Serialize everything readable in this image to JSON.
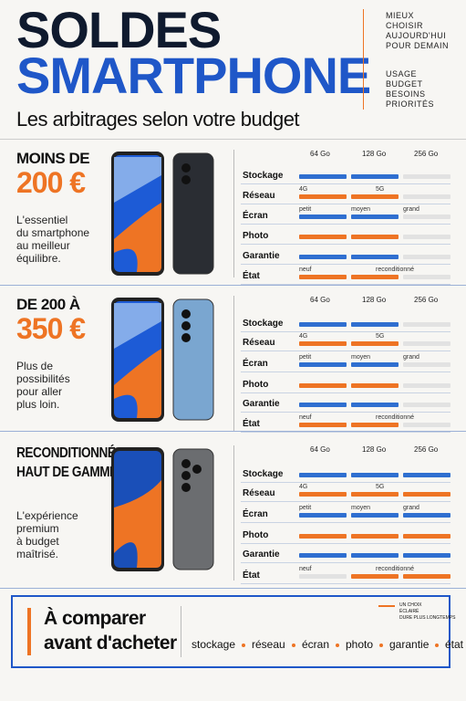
{
  "header": {
    "title_lines": [
      "SOLDES",
      "SMARTPHONE"
    ],
    "subtitle": "Les arbitrages selon votre budget",
    "notes_top": [
      "MIEUX",
      "CHOISIR",
      "AUJOURD'HUI",
      "POUR DEMAIN"
    ],
    "notes_bottom": [
      "USAGE",
      "BUDGET",
      "BESOINS",
      "PRIORITÉS"
    ]
  },
  "sections": [
    {
      "heading": [
        "MOINS DE",
        "200 €"
      ],
      "description": [
        "L'essentiel",
        "du smartphone",
        "au meilleur",
        "équilibre."
      ],
      "columns": [
        "64 Go",
        "128 Go",
        "256 Go"
      ],
      "rows": [
        {
          "label": "Stockage",
          "bars": [
            "#2f6fd0",
            "#2f6fd0",
            "#e2e2e2"
          ]
        },
        {
          "label": "Réseau",
          "ticks": [
            "4G",
            "5G"
          ],
          "bars": [
            "#ee7424",
            "#ee7424",
            "#e2e2e2"
          ]
        },
        {
          "label": "Écran",
          "ticks": [
            "petit",
            "moyen",
            "grand"
          ],
          "bars": [
            "#2f6fd0",
            "#2f6fd0",
            "#e2e2e2"
          ]
        },
        {
          "label": "Photo",
          "bars": [
            "#ee7424",
            "#ee7424",
            "#e2e2e2"
          ]
        },
        {
          "label": "Garantie",
          "bars": [
            "#2f6fd0",
            "#2f6fd0",
            "#e2e2e2"
          ]
        },
        {
          "label": "État",
          "ticks": [
            "neuf",
            "reconditionné"
          ],
          "bars": [
            "#ee7424",
            "#ee7424",
            "#e2e2e2"
          ]
        }
      ]
    },
    {
      "heading": [
        "DE 200 À",
        "350 €"
      ],
      "description": [
        "Plus de",
        "possibilités",
        "pour aller",
        "plus loin."
      ],
      "columns": [
        "64 Go",
        "128 Go",
        "256 Go"
      ],
      "rows": [
        {
          "label": "Stockage",
          "bars": [
            "#2f6fd0",
            "#2f6fd0",
            "#e2e2e2"
          ]
        },
        {
          "label": "Réseau",
          "ticks": [
            "4G",
            "5G"
          ],
          "bars": [
            "#ee7424",
            "#ee7424",
            "#e2e2e2"
          ]
        },
        {
          "label": "Écran",
          "ticks": [
            "petit",
            "moyen",
            "grand"
          ],
          "bars": [
            "#2f6fd0",
            "#2f6fd0",
            "#e2e2e2"
          ]
        },
        {
          "label": "Photo",
          "bars": [
            "#ee7424",
            "#ee7424",
            "#e2e2e2"
          ]
        },
        {
          "label": "Garantie",
          "bars": [
            "#2f6fd0",
            "#2f6fd0",
            "#e2e2e2"
          ]
        },
        {
          "label": "État",
          "ticks": [
            "neuf",
            "reconditionné"
          ],
          "bars": [
            "#ee7424",
            "#ee7424",
            "#e2e2e2"
          ]
        }
      ]
    },
    {
      "heading": [
        "RECONDITIONNÉ",
        "HAUT DE GAMME"
      ],
      "description": [
        "L'expérience",
        "premium",
        "à budget",
        "maîtrisé."
      ],
      "columns": [
        "64 Go",
        "128 Go",
        "256 Go"
      ],
      "rows": [
        {
          "label": "Stockage",
          "bars": [
            "#2f6fd0",
            "#2f6fd0",
            "#2f6fd0"
          ]
        },
        {
          "label": "Réseau",
          "ticks": [
            "4G",
            "5G"
          ],
          "bars": [
            "#ee7424",
            "#ee7424",
            "#ee7424"
          ]
        },
        {
          "label": "Écran",
          "ticks": [
            "petit",
            "moyen",
            "grand"
          ],
          "bars": [
            "#2f6fd0",
            "#2f6fd0",
            "#2f6fd0"
          ]
        },
        {
          "label": "Photo",
          "bars": [
            "#ee7424",
            "#ee7424",
            "#ee7424"
          ]
        },
        {
          "label": "Garantie",
          "bars": [
            "#2f6fd0",
            "#2f6fd0",
            "#2f6fd0"
          ]
        },
        {
          "label": "État",
          "ticks": [
            "neuf",
            "reconditionné"
          ],
          "bars": [
            "#e2e2e2",
            "#ee7424",
            "#ee7424"
          ]
        }
      ]
    }
  ],
  "footer": {
    "title_lines": [
      "À comparer",
      "avant d'acheter"
    ],
    "note": [
      "UN CHOIX",
      "ÉCLAIRÉ",
      "DURE PLUS LONGTEMPS"
    ],
    "items": [
      "stockage",
      "réseau",
      "écran",
      "photo",
      "garantie",
      "état"
    ]
  }
}
